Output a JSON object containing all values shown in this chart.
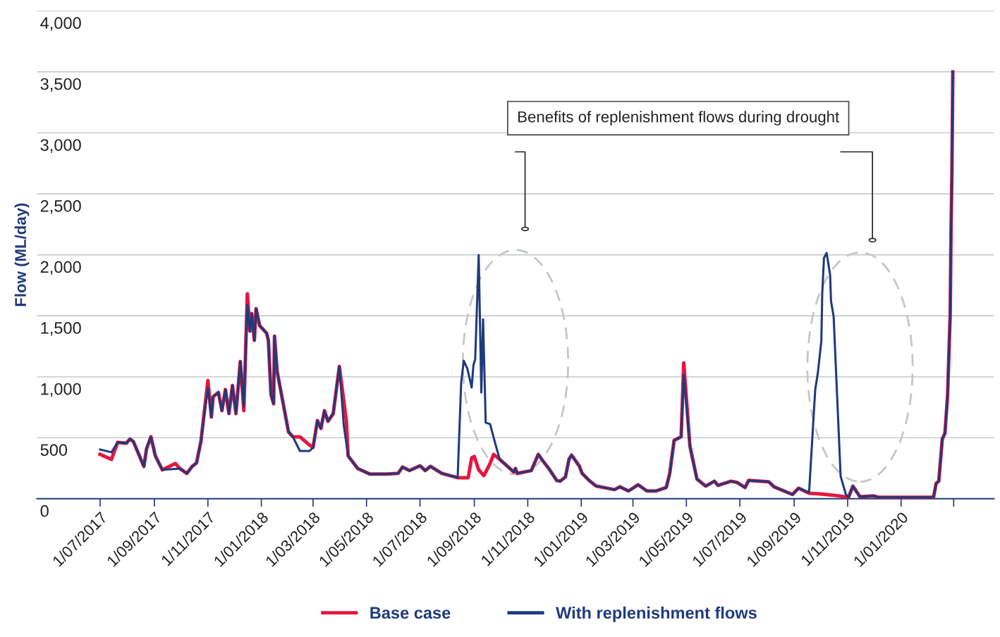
{
  "chart_data": {
    "type": "line",
    "ylabel": "Flow (ML/day)",
    "annotations": [
      "Benefits of replenishment flows during drought"
    ],
    "xlim": [
      "2017-04-20",
      "2020-04-16"
    ],
    "xticks": [
      {
        "value": "2017-07-01",
        "label": "1/07/2017"
      },
      {
        "value": "2017-09-01",
        "label": "1/09/2017"
      },
      {
        "value": "2017-11-01",
        "label": "1/11/2017"
      },
      {
        "value": "2018-01-01",
        "label": "1/01/2018"
      },
      {
        "value": "2018-03-01",
        "label": "1/03/2018"
      },
      {
        "value": "2018-05-01",
        "label": "1/05/2018"
      },
      {
        "value": "2018-07-01",
        "label": "1/07/2018"
      },
      {
        "value": "2018-09-01",
        "label": "1/09/2018"
      },
      {
        "value": "2018-11-01",
        "label": "1/11/2018"
      },
      {
        "value": "2019-01-01",
        "label": "1/01/2019"
      },
      {
        "value": "2019-03-01",
        "label": "1/03/2019"
      },
      {
        "value": "2019-05-01",
        "label": "1/05/2019"
      },
      {
        "value": "2019-07-01",
        "label": "1/07/2019"
      },
      {
        "value": "2019-09-01",
        "label": "1/09/2019"
      },
      {
        "value": "2019-11-01",
        "label": "1/11/2019"
      },
      {
        "value": "2020-01-01",
        "label": "1/01/2020"
      },
      {
        "value": "2020-03-01",
        "label": null
      }
    ],
    "ylim": [
      0,
      4000
    ],
    "yticks": [
      0,
      {
        "value": 500,
        "label": "500"
      },
      {
        "value": 1000,
        "label": "1,000"
      },
      {
        "value": 1500,
        "label": "1,500"
      },
      {
        "value": 2000,
        "label": "2,000"
      },
      {
        "value": 2500,
        "label": "2,500"
      },
      {
        "value": 3000,
        "label": "3,000"
      },
      {
        "value": 3500,
        "label": "3,500"
      },
      {
        "value": 4000,
        "label": "4,000"
      }
    ],
    "grid": "y",
    "legend": "bottom",
    "series": [
      {
        "name": "Base case",
        "color": "#e4173e",
        "x": [
          "2017-07-01",
          "2017-07-14",
          "2017-07-21",
          "2017-07-31",
          "2017-08-04",
          "2017-08-08",
          "2017-08-20",
          "2017-08-23",
          "2017-08-28",
          "2017-09-02",
          "2017-09-10",
          "2017-09-25",
          "2017-09-30",
          "2017-10-08",
          "2017-10-14",
          "2017-10-19",
          "2017-10-24",
          "2017-11-01",
          "2017-11-05",
          "2017-11-07",
          "2017-11-13",
          "2017-11-17",
          "2017-11-21",
          "2017-11-25",
          "2017-11-29",
          "2017-12-03",
          "2017-12-08",
          "2017-12-12",
          "2017-12-16",
          "2017-12-19",
          "2017-12-21",
          "2017-12-24",
          "2017-12-26",
          "2017-12-30",
          "2018-01-07",
          "2018-01-09",
          "2018-01-12",
          "2018-01-15",
          "2018-01-16",
          "2018-01-19",
          "2018-02-01",
          "2018-02-06",
          "2018-02-14",
          "2018-02-25",
          "2018-03-01",
          "2018-03-06",
          "2018-03-10",
          "2018-03-14",
          "2018-03-18",
          "2018-03-24",
          "2018-03-31",
          "2018-04-08",
          "2018-04-10",
          "2018-04-21",
          "2018-05-05",
          "2018-05-24",
          "2018-06-06",
          "2018-06-11",
          "2018-06-19",
          "2018-07-01",
          "2018-07-07",
          "2018-07-13",
          "2018-07-26",
          "2018-08-13",
          "2018-08-25",
          "2018-08-29",
          "2018-09-01",
          "2018-09-06",
          "2018-09-12",
          "2018-09-19",
          "2018-09-23",
          "2018-09-30",
          "2018-10-16",
          "2018-10-18",
          "2018-10-20",
          "2018-11-05",
          "2018-11-13",
          "2018-11-17",
          "2018-11-25",
          "2018-12-04",
          "2018-12-08",
          "2018-12-14",
          "2018-12-18",
          "2018-12-21",
          "2018-12-30",
          "2019-01-02",
          "2019-01-11",
          "2019-01-18",
          "2019-02-08",
          "2019-02-14",
          "2019-02-24",
          "2019-03-07",
          "2019-03-17",
          "2019-03-27",
          "2019-04-08",
          "2019-04-12",
          "2019-04-17",
          "2019-04-25",
          "2019-04-28",
          "2019-05-05",
          "2019-05-13",
          "2019-05-23",
          "2019-06-02",
          "2019-06-06",
          "2019-06-21",
          "2019-06-28",
          "2019-07-07",
          "2019-07-11",
          "2019-08-03",
          "2019-08-09",
          "2019-08-30",
          "2019-09-06",
          "2019-09-18",
          "2019-10-01",
          "2019-10-15",
          "2019-11-02",
          "2019-11-07",
          "2019-11-15",
          "2019-12-01",
          "2019-12-06",
          "2020-02-07",
          "2020-02-10",
          "2020-02-13",
          "2020-02-17",
          "2020-02-20",
          "2020-02-23",
          "2020-02-26",
          "2020-02-27",
          "2020-02-28",
          "2020-02-29"
        ],
        "values": [
          364,
          323,
          462,
          456,
          490,
          468,
          265,
          410,
          508,
          352,
          237,
          289,
          248,
          208,
          265,
          294,
          468,
          970,
          670,
          837,
          872,
          722,
          895,
          698,
          929,
          698,
          1125,
          722,
          1680,
          1374,
          1518,
          1299,
          1559,
          1420,
          1357,
          1299,
          854,
          779,
          1333,
          1045,
          548,
          508,
          508,
          440,
          421,
          641,
          577,
          722,
          635,
          698,
          1085,
          635,
          352,
          248,
          202,
          202,
          208,
          260,
          231,
          271,
          231,
          266,
          208,
          173,
          173,
          335,
          346,
          237,
          190,
          289,
          364,
          323,
          219,
          248,
          208,
          231,
          364,
          323,
          248,
          150,
          144,
          179,
          323,
          358,
          266,
          208,
          144,
          104,
          75,
          98,
          64,
          115,
          64,
          64,
          92,
          208,
          479,
          508,
          1114,
          433,
          162,
          104,
          144,
          110,
          144,
          133,
          92,
          150,
          139,
          98,
          35,
          87,
          45,
          40,
          30,
          12,
          104,
          17,
          23,
          12,
          12,
          127,
          144,
          490,
          537,
          843,
          1507,
          2211,
          2685,
          3500
        ]
      },
      {
        "name": "With replenishment flows",
        "color": "#1f3a7d",
        "x": [
          "2017-07-01",
          "2017-07-14",
          "2017-07-21",
          "2017-07-31",
          "2017-08-04",
          "2017-08-08",
          "2017-08-20",
          "2017-08-23",
          "2017-08-28",
          "2017-09-02",
          "2017-09-10",
          "2017-09-30",
          "2017-10-08",
          "2017-10-14",
          "2017-10-19",
          "2017-10-24",
          "2017-11-01",
          "2017-11-05",
          "2017-11-07",
          "2017-11-13",
          "2017-11-17",
          "2017-11-21",
          "2017-11-25",
          "2017-11-29",
          "2017-12-03",
          "2017-12-08",
          "2017-12-12",
          "2017-12-16",
          "2017-12-19",
          "2017-12-21",
          "2017-12-24",
          "2017-12-26",
          "2017-12-30",
          "2018-01-07",
          "2018-01-09",
          "2018-01-12",
          "2018-01-15",
          "2018-01-16",
          "2018-01-19",
          "2018-02-01",
          "2018-02-06",
          "2018-02-14",
          "2018-02-25",
          "2018-03-01",
          "2018-03-06",
          "2018-03-10",
          "2018-03-14",
          "2018-03-18",
          "2018-03-24",
          "2018-03-31",
          "2018-04-05",
          "2018-04-10",
          "2018-04-21",
          "2018-05-05",
          "2018-05-24",
          "2018-06-06",
          "2018-06-11",
          "2018-06-19",
          "2018-07-01",
          "2018-07-07",
          "2018-07-13",
          "2018-07-26",
          "2018-08-13",
          "2018-08-17",
          "2018-08-20",
          "2018-08-24",
          "2018-08-29",
          "2018-08-31",
          "2018-09-02",
          "2018-09-06",
          "2018-09-09",
          "2018-09-11",
          "2018-09-14",
          "2018-09-19",
          "2018-09-25",
          "2018-09-30",
          "2018-10-16",
          "2018-10-18",
          "2018-10-20",
          "2018-11-05",
          "2018-11-13",
          "2018-11-17",
          "2018-11-25",
          "2018-12-04",
          "2018-12-08",
          "2018-12-14",
          "2018-12-18",
          "2018-12-21",
          "2018-12-30",
          "2019-01-02",
          "2019-01-11",
          "2019-01-18",
          "2019-02-08",
          "2019-02-14",
          "2019-02-24",
          "2019-03-07",
          "2019-03-17",
          "2019-03-27",
          "2019-04-08",
          "2019-04-12",
          "2019-04-17",
          "2019-04-25",
          "2019-04-28",
          "2019-05-05",
          "2019-05-13",
          "2019-05-23",
          "2019-06-02",
          "2019-06-06",
          "2019-06-21",
          "2019-06-28",
          "2019-07-07",
          "2019-07-11",
          "2019-08-03",
          "2019-08-09",
          "2019-08-30",
          "2019-09-06",
          "2019-09-18",
          "2019-09-25",
          "2019-09-28",
          "2019-10-02",
          "2019-10-03",
          "2019-10-05",
          "2019-10-08",
          "2019-10-12",
          "2019-10-13",
          "2019-10-16",
          "2019-10-24",
          "2019-10-30",
          "2019-11-02",
          "2019-11-07",
          "2019-11-15",
          "2019-12-01",
          "2019-12-06",
          "2020-02-07",
          "2020-02-10",
          "2020-02-13",
          "2020-02-17",
          "2020-02-20",
          "2020-02-23",
          "2020-02-26",
          "2020-02-27",
          "2020-02-28",
          "2020-02-29"
        ],
        "values": [
          404,
          381,
          462,
          456,
          490,
          468,
          265,
          410,
          508,
          352,
          237,
          248,
          208,
          265,
          294,
          468,
          912,
          670,
          837,
          872,
          722,
          895,
          698,
          929,
          698,
          1125,
          756,
          1588,
          1374,
          1518,
          1299,
          1559,
          1420,
          1357,
          1299,
          854,
          779,
          1333,
          1045,
          548,
          508,
          392,
          392,
          421,
          641,
          577,
          722,
          635,
          698,
          1085,
          606,
          352,
          248,
          202,
          202,
          208,
          260,
          231,
          271,
          231,
          266,
          208,
          173,
          953,
          1131,
          1068,
          912,
          1097,
          1143,
          1998,
          872,
          1471,
          624,
          612,
          450,
          323,
          219,
          248,
          208,
          231,
          364,
          323,
          248,
          150,
          144,
          179,
          323,
          358,
          266,
          208,
          144,
          104,
          75,
          98,
          64,
          115,
          64,
          64,
          92,
          208,
          479,
          508,
          1016,
          433,
          162,
          104,
          144,
          110,
          144,
          133,
          92,
          150,
          139,
          98,
          35,
          87,
          52,
          895,
          1033,
          1293,
          1680,
          1975,
          2015,
          1836,
          1622,
          1495,
          185,
          35,
          12,
          104,
          17,
          23,
          12,
          12,
          127,
          144,
          490,
          537,
          843,
          1507,
          2211,
          2685,
          3500
        ]
      }
    ]
  }
}
